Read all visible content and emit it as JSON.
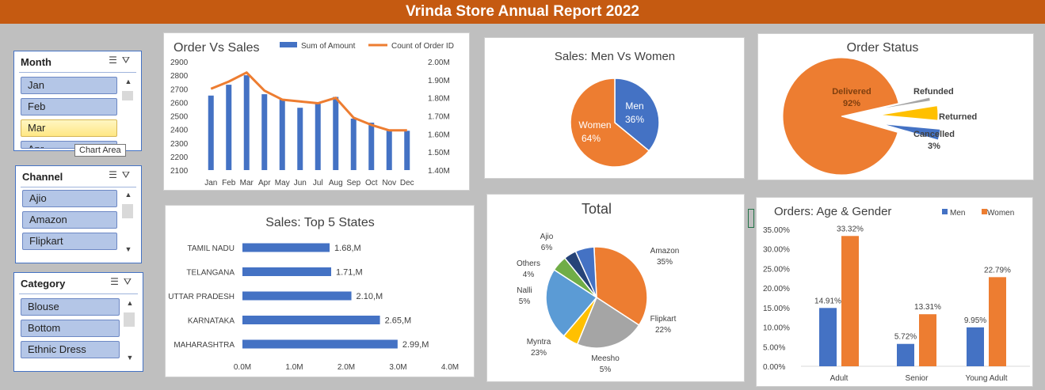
{
  "banner": {
    "title": "Vrinda Store Annual Report 2022"
  },
  "tooltip": "Chart Area",
  "slicers": {
    "month": {
      "title": "Month",
      "items": [
        "Jan",
        "Feb",
        "Mar",
        "Apr"
      ]
    },
    "channel": {
      "title": "Channel",
      "items": [
        "Ajio",
        "Amazon",
        "Flipkart"
      ]
    },
    "category": {
      "title": "Category",
      "items": [
        "Blouse",
        "Bottom",
        "Ethnic Dress"
      ]
    }
  },
  "icons": {
    "multiselect": "multi-select-icon",
    "clear_filter": "clear-filter-icon"
  },
  "colors": {
    "banner": "#c55a11",
    "blue": "#4472c4",
    "orange": "#ed7d31",
    "gray": "#a5a5a5",
    "yellow": "#ffc000",
    "navy": "#264478",
    "green": "#70ad47",
    "lightblue": "#5b9bd5"
  },
  "chart_data": [
    {
      "type": "bar",
      "title": "Order Vs Sales",
      "categories": [
        "Jan",
        "Feb",
        "Mar",
        "Apr",
        "May",
        "Jun",
        "Jul",
        "Aug",
        "Sep",
        "Oct",
        "Nov",
        "Dec"
      ],
      "series": [
        {
          "name": "Sum of Amount",
          "kind": "bar",
          "axis": "left",
          "values": [
            2650,
            2730,
            2800,
            2660,
            2620,
            2560,
            2590,
            2640,
            2480,
            2450,
            2390,
            2390
          ]
        },
        {
          "name": "Count of Order ID",
          "kind": "line",
          "axis": "right",
          "values": [
            1.85,
            1.89,
            1.94,
            1.84,
            1.79,
            1.78,
            1.77,
            1.8,
            1.69,
            1.65,
            1.62,
            1.62
          ]
        }
      ],
      "yticks": [
        "2900",
        "2800",
        "2700",
        "2600",
        "2500",
        "2400",
        "2300",
        "2200",
        "2100"
      ],
      "y2ticks": [
        "2.00M",
        "1.90M",
        "1.80M",
        "1.70M",
        "1.60M",
        "1.50M",
        "1.40M"
      ],
      "ylim": [
        2100,
        2900
      ],
      "y2lim": [
        1.4,
        2.0
      ],
      "legend": "top"
    },
    {
      "type": "pie",
      "title": "Sales: Men Vs Women",
      "slices": [
        {
          "label": "Men",
          "pct": "36%",
          "value": 36
        },
        {
          "label": "Women",
          "pct": "64%",
          "value": 64
        }
      ]
    },
    {
      "type": "pie",
      "title": "Order Status",
      "slices": [
        {
          "label": "Delivered",
          "pct": "92%",
          "value": 92
        },
        {
          "label": "Refunded",
          "pct": "",
          "value": 1
        },
        {
          "label": "Returned",
          "pct": "",
          "value": 4
        },
        {
          "label": "Cancelled",
          "pct": "3%",
          "value": 3
        }
      ]
    },
    {
      "type": "bar",
      "orientation": "horizontal",
      "title": "Sales: Top 5 States",
      "categories": [
        "TAMIL NADU",
        "TELANGANA",
        "UTTAR PRADESH",
        "KARNATAKA",
        "MAHARASHTRA"
      ],
      "values": [
        1.68,
        1.71,
        2.1,
        2.65,
        2.99
      ],
      "labels": [
        "1.68,M",
        "1.71,M",
        "2.10,M",
        "2.65,M",
        "2.99,M"
      ],
      "xticks": [
        "0.0M",
        "1.0M",
        "2.0M",
        "3.0M",
        "4.0M"
      ],
      "xlim": [
        0,
        4
      ]
    },
    {
      "type": "pie",
      "title": "Total",
      "slices": [
        {
          "label": "Amazon",
          "pct": "35%",
          "value": 35
        },
        {
          "label": "Flipkart",
          "pct": "22%",
          "value": 22
        },
        {
          "label": "Meesho",
          "pct": "5%",
          "value": 5
        },
        {
          "label": "Myntra",
          "pct": "23%",
          "value": 23
        },
        {
          "label": "Nalli",
          "pct": "5%",
          "value": 5
        },
        {
          "label": "Others",
          "pct": "4%",
          "value": 4
        },
        {
          "label": "Ajio",
          "pct": "6%",
          "value": 6
        }
      ]
    },
    {
      "type": "bar",
      "title": "Orders: Age & Gender",
      "categories": [
        "Adult",
        "Senior",
        "Young Adult"
      ],
      "series": [
        {
          "name": "Men",
          "values": [
            14.91,
            5.72,
            9.95
          ],
          "labels": [
            "14.91%",
            "5.72%",
            "9.95%"
          ]
        },
        {
          "name": "Women",
          "values": [
            33.32,
            13.31,
            22.79
          ],
          "labels": [
            "33.32%",
            "13.31%",
            "22.79%"
          ]
        }
      ],
      "yticks": [
        "35.00%",
        "30.00%",
        "25.00%",
        "20.00%",
        "15.00%",
        "10.00%",
        "5.00%",
        "0.00%"
      ],
      "ylim": [
        0,
        35
      ],
      "legend": "top-right"
    }
  ]
}
